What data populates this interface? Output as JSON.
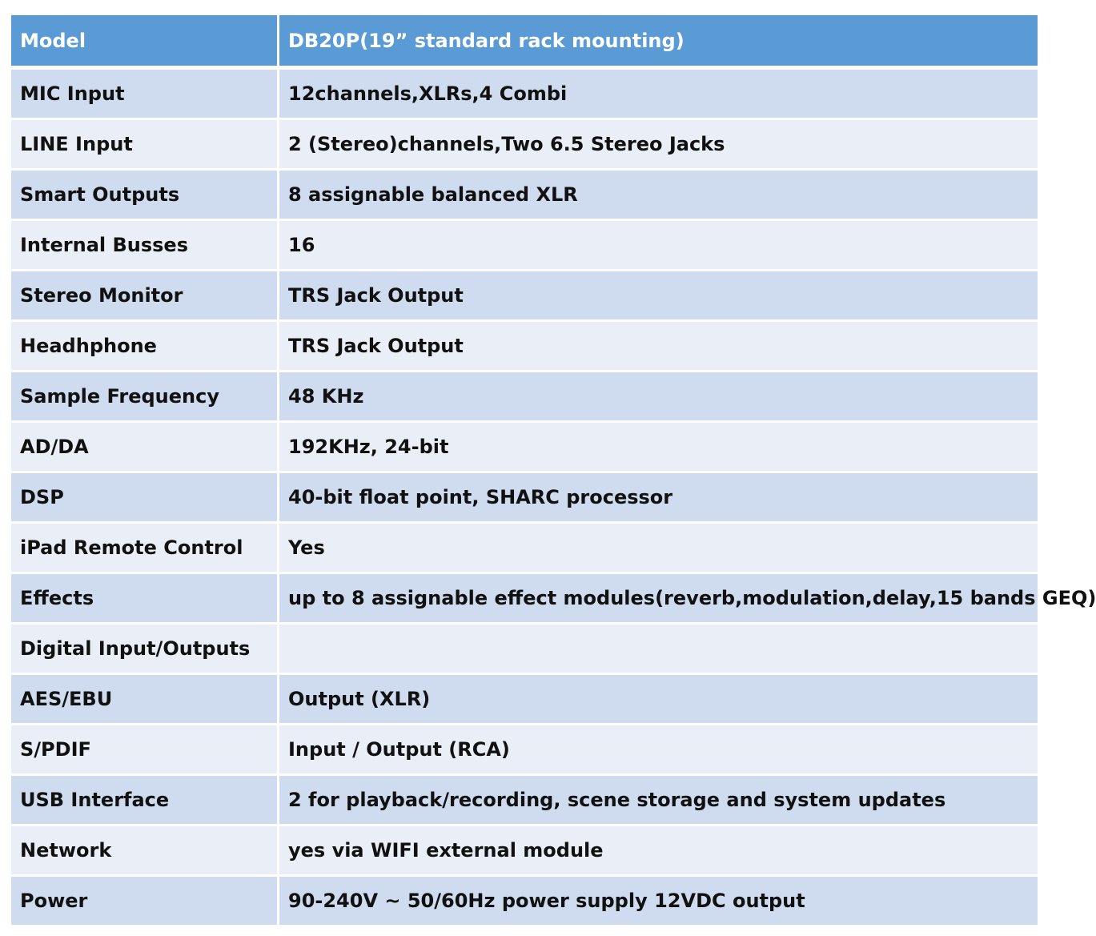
{
  "header": {
    "label": "Model",
    "value": "DB20P(19” standard rack mounting)"
  },
  "rows": [
    {
      "label": "MIC Input",
      "value": "12channels,XLRs,4 Combi"
    },
    {
      "label": "LINE Input",
      "value": "2 (Stereo)channels,Two 6.5 Stereo Jacks"
    },
    {
      "label": "Smart Outputs",
      "value": "8 assignable balanced XLR"
    },
    {
      "label": "Internal Busses",
      "value": "16"
    },
    {
      "label": "Stereo Monitor",
      "value": "TRS Jack Output"
    },
    {
      "label": "Headhphone",
      "value": "TRS Jack Output"
    },
    {
      "label": "Sample Frequency",
      "value": "48 KHz"
    },
    {
      "label": "AD/DA",
      "value": "192KHz, 24-bit"
    },
    {
      "label": "DSP",
      "value": "40-bit float point, SHARC processor"
    },
    {
      "label": "iPad Remote Control",
      "value": "Yes"
    },
    {
      "label": "Effects",
      "value": "up to 8 assignable effect modules(reverb,modulation,delay,15 bands GEQ)"
    },
    {
      "label": "Digital Input/Outputs",
      "value": ""
    },
    {
      "label": "AES/EBU",
      "value": "Output (XLR)"
    },
    {
      "label": "S/PDIF",
      "value": "Input / Output (RCA)"
    },
    {
      "label": "USB Interface",
      "value": "2 for playback/recording, scene storage and system updates"
    },
    {
      "label": "Network",
      "value": "yes via WIFI external module"
    },
    {
      "label": "Power",
      "value": "90-240V ~ 50/60Hz power supply 12VDC output"
    }
  ],
  "colors": {
    "header_bg": "#5b9bd5",
    "row_band_a": "#cfdcef",
    "row_band_b": "#e9eef7",
    "grid_line": "#ffffff"
  }
}
